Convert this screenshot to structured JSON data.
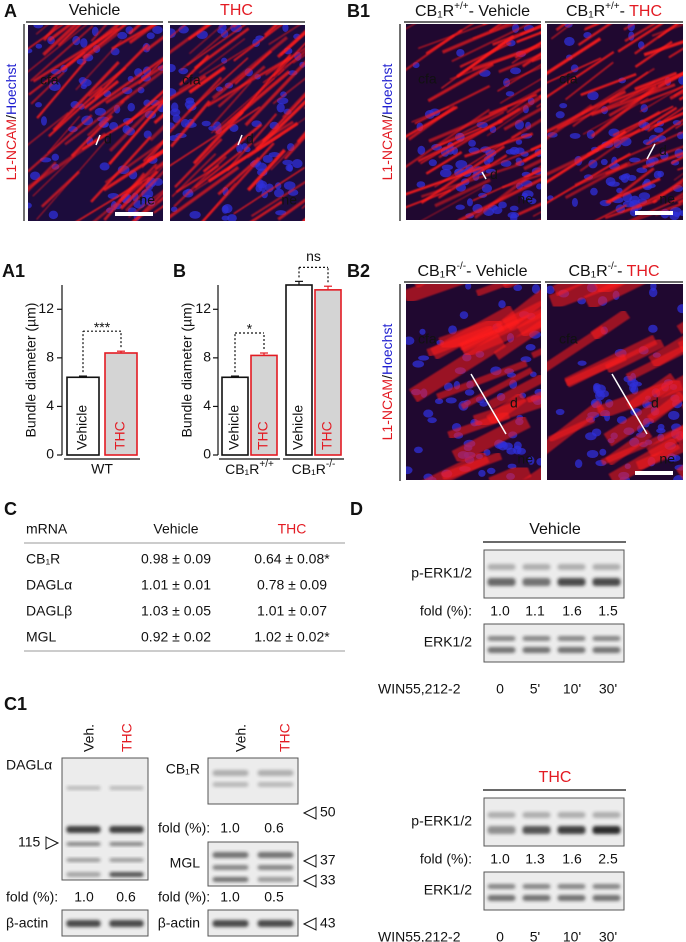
{
  "gene": "CB₁R",
  "dash": "- ",
  "panel_a": {
    "label": "A",
    "conditions": [
      "Vehicle",
      "THC"
    ],
    "stain": {
      "red": "L1-NCAM",
      "sep": "/",
      "blue": "Hoechst"
    },
    "annotations": [
      "cfa",
      "d",
      "ne"
    ]
  },
  "panel_b1": {
    "label": "B1",
    "genotype": "+/+"
  },
  "panel_b2": {
    "label": "B2",
    "genotype": "-/-"
  },
  "chart_a1": {
    "type": "bar",
    "label": "A1",
    "y_label": "Bundle diameter (µm)",
    "ylim": [
      0,
      14
    ],
    "yticks": [
      0,
      4,
      8,
      12
    ],
    "groups": [
      "WT"
    ],
    "series": [
      {
        "name": "Vehicle",
        "color": "#ffffff",
        "values": [
          6.4
        ],
        "errors": [
          0.1
        ]
      },
      {
        "name": "THC",
        "color": "#d4d4d4",
        "values": [
          8.4
        ],
        "errors": [
          0.15
        ]
      }
    ],
    "significance": [
      "***"
    ]
  },
  "chart_b": {
    "type": "bar",
    "label": "B",
    "y_label": "Bundle diameter (µm)",
    "ylim": [
      0,
      14
    ],
    "yticks": [
      0,
      4,
      8,
      12
    ],
    "groups": [
      "+/+",
      "-/-"
    ],
    "series": [
      {
        "name": "Vehicle",
        "color": "#ffffff",
        "values": [
          6.4,
          14.0
        ],
        "errors": [
          0.1,
          0.3
        ]
      },
      {
        "name": "THC",
        "color": "#d4d4d4",
        "values": [
          8.2,
          13.6
        ],
        "errors": [
          0.2,
          0.3
        ]
      }
    ],
    "significance": [
      "*",
      "ns"
    ]
  },
  "table_c": {
    "label": "C",
    "header": [
      "mRNA",
      "Vehicle",
      "THC"
    ],
    "rows": [
      [
        "CB₁R",
        "0.98 ± 0.09",
        "0.64 ± 0.08*"
      ],
      [
        "DAGLα",
        "1.01 ± 0.01",
        "0.78 ± 0.09"
      ],
      [
        "DAGLβ",
        "1.03 ± 0.05",
        "1.01 ± 0.07"
      ],
      [
        "MGL",
        "0.92 ± 0.02",
        "1.02 ± 0.02*"
      ]
    ]
  },
  "panel_d": {
    "label": "D",
    "target": "p-ERK1/2",
    "fold_label": "fold (%):",
    "loading": "ERK1/2",
    "treatment": "WIN55,212-2",
    "times": [
      "0",
      "5'",
      "10'",
      "30'"
    ],
    "blots": [
      {
        "title": "Vehicle",
        "fold": [
          "1.0",
          "1.1",
          "1.6",
          "1.5"
        ]
      },
      {
        "title": "THC",
        "fold": [
          "1.0",
          "1.3",
          "1.6",
          "2.5"
        ]
      }
    ]
  },
  "panel_c1": {
    "label": "C1",
    "lanes": [
      "Veh.",
      "THC"
    ],
    "fold_label": "fold (%):",
    "loading": "β-actin",
    "actin_marker": "43",
    "dagl": {
      "name": "DAGLα",
      "marker": "115",
      "fold": [
        "1.0",
        "0.6"
      ]
    },
    "cb1r": {
      "name": "CB₁R",
      "marker": "50",
      "fold": [
        "1.0",
        "0.6"
      ]
    },
    "mgl": {
      "name": "MGL",
      "markers": [
        "37",
        "33"
      ],
      "fold": [
        "1.0",
        "0.5"
      ]
    }
  }
}
